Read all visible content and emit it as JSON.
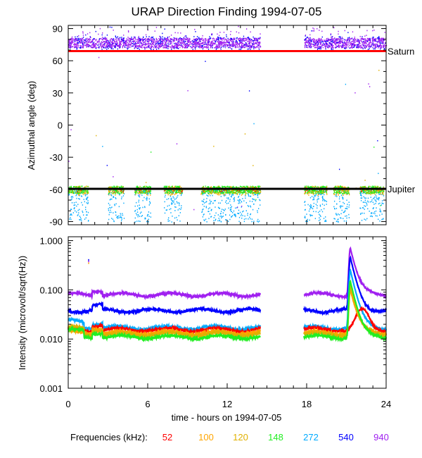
{
  "chart_data": [
    {
      "type": "scatter",
      "panel": "top",
      "title": "URAP Direction Finding  1994-07-05",
      "ylabel": "Azimuthal angle (deg)",
      "xlim": [
        0,
        24
      ],
      "ylim": [
        -93,
        93
      ],
      "yticks": [
        90,
        60,
        30,
        0,
        -30,
        -60,
        -90
      ],
      "ytick_labels": [
        "90",
        "60",
        "30",
        "0",
        "-30",
        "-60",
        "-90"
      ],
      "data_gap_hours": [
        14.5,
        17.8
      ],
      "reference_lines": [
        {
          "name": "Saturn",
          "label": "Saturn",
          "y": 69,
          "color": "#ff0000"
        },
        {
          "name": "Jupiter",
          "label": "Jupiter",
          "y": -59.5,
          "color": "#000000"
        }
      ],
      "series": [
        {
          "name": "940",
          "color": "#a020f0",
          "center": 77,
          "spread": 4
        },
        {
          "name": "540",
          "color": "#0000ff",
          "center": 79,
          "spread": 5
        },
        {
          "name": "272",
          "color": "#00aaff",
          "center": -75,
          "spread": 12
        },
        {
          "name": "148",
          "color": "#22ee22",
          "center": -60,
          "spread": 3
        },
        {
          "name": "120",
          "color": "#e0b000",
          "center": -60,
          "spread": 3
        },
        {
          "name": "100",
          "color": "#ffa500",
          "center": -62,
          "spread": 3
        },
        {
          "name": "52",
          "color": "#ff0000",
          "center": -60,
          "spread": 2
        }
      ]
    },
    {
      "type": "line",
      "panel": "bottom",
      "ylabel": "Intensity (microvolt/sqrt(Hz))",
      "xlabel": "time - hours on 1994-07-05",
      "xlim": [
        0,
        24
      ],
      "xticks": [
        0,
        6,
        12,
        18,
        24
      ],
      "xtick_labels": [
        "0",
        "6",
        "12",
        "18",
        "24"
      ],
      "yscale": "log",
      "ylim": [
        0.001,
        1.2
      ],
      "yticks": [
        1.0,
        0.1,
        0.01,
        0.001
      ],
      "ytick_labels": [
        "1.000",
        "0.100",
        "0.010",
        "0.001"
      ],
      "data_gap_hours": [
        14.5,
        17.8
      ],
      "burst": {
        "start_hour": 21.0,
        "peak_hour": 21.3,
        "end_hour": 23.5
      },
      "series": [
        {
          "name": "940",
          "color": "#a020f0",
          "level": 0.08,
          "peak": 0.7
        },
        {
          "name": "540",
          "color": "#0000ff",
          "level": 0.038,
          "peak": 0.45
        },
        {
          "name": "272",
          "color": "#00aaff",
          "level": 0.017,
          "peak": 0.25
        },
        {
          "name": "52",
          "color": "#ff0000",
          "level": 0.0155,
          "peak": 0.04
        },
        {
          "name": "100",
          "color": "#ffa500",
          "level": 0.0135,
          "peak": 0.1
        },
        {
          "name": "120",
          "color": "#e0b000",
          "level": 0.0125,
          "peak": 0.12
        },
        {
          "name": "148",
          "color": "#22ee22",
          "level": 0.011,
          "peak": 0.15
        }
      ]
    }
  ],
  "legend": {
    "label": "Frequencies (kHz):",
    "items": [
      {
        "text": "52",
        "color": "#ff0000"
      },
      {
        "text": "100",
        "color": "#ffa500"
      },
      {
        "text": "120",
        "color": "#e0b000"
      },
      {
        "text": "148",
        "color": "#22ee22"
      },
      {
        "text": "272",
        "color": "#00aaff"
      },
      {
        "text": "540",
        "color": "#0000ff"
      },
      {
        "text": "940",
        "color": "#a020f0"
      }
    ]
  }
}
